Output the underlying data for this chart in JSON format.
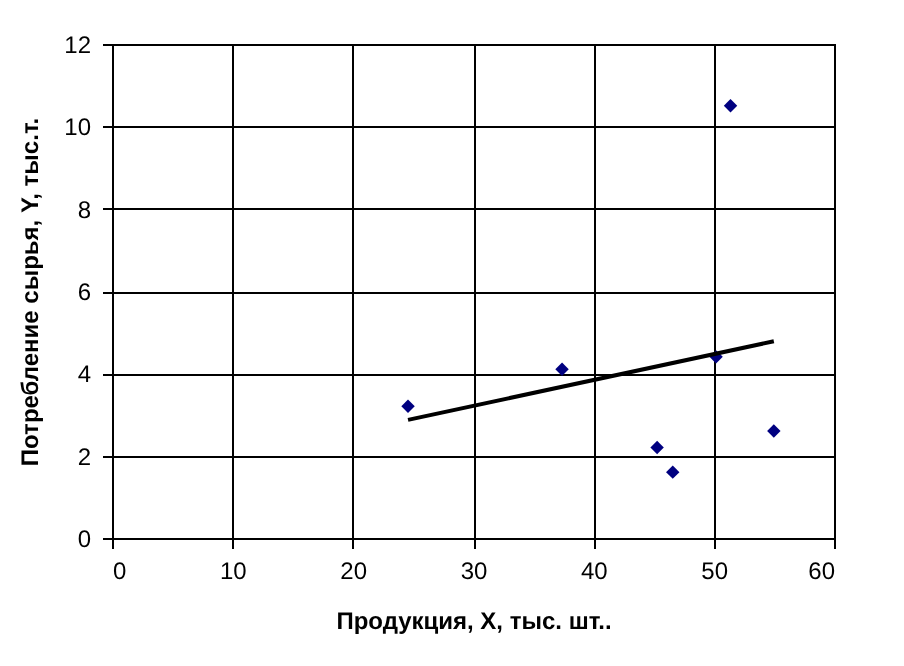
{
  "chart_data": {
    "type": "scatter",
    "xlabel": "Продукция, X, тыс. шт..",
    "ylabel": "Потребление сырья, Y, тыс.т.",
    "xlim": [
      0,
      60
    ],
    "ylim": [
      0,
      12
    ],
    "xticks": [
      0,
      10,
      20,
      30,
      40,
      50,
      60
    ],
    "yticks": [
      0,
      2,
      4,
      6,
      8,
      10,
      12
    ],
    "grid": true,
    "series": [
      {
        "color": "#000080",
        "marker": "diamond",
        "x": [
          24.6,
          37.4,
          45.3,
          46.6,
          50.2,
          51.4,
          55.0
        ],
        "values": [
          3.2,
          4.1,
          2.2,
          1.6,
          4.4,
          10.5,
          2.6
        ]
      },
      {
        "type": "line",
        "color": "#000000",
        "marker": "none",
        "x": [
          24.6,
          55.0
        ],
        "values": [
          2.87,
          4.78
        ]
      }
    ]
  }
}
